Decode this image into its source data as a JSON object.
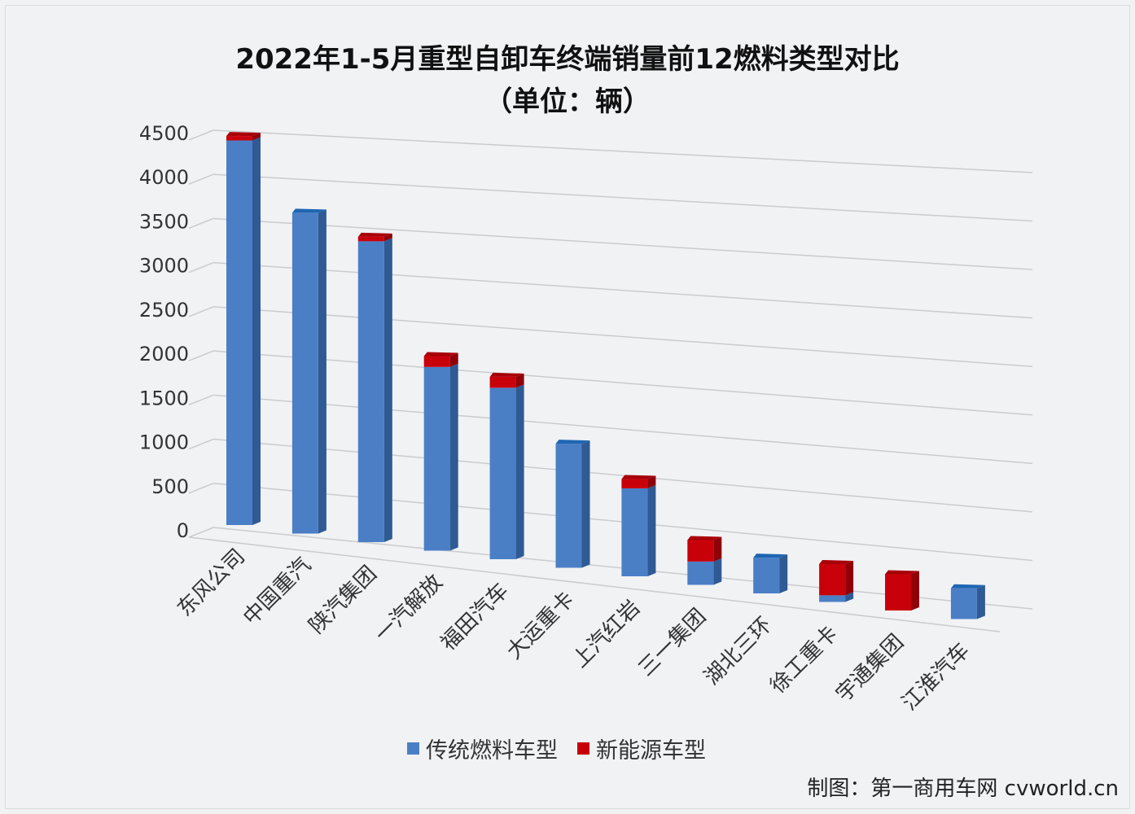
{
  "title": "2022年1-5月重型自卸车终端销量前12燃料类型对比",
  "subtitle": "（单位：辆）",
  "legend": [
    {
      "label": "传统燃料车型",
      "color": "#4a7fc6"
    },
    {
      "label": "新能源车型",
      "color": "#c8000a"
    }
  ],
  "credit": "制图：第一商用车网 cvworld.cn",
  "colors": {
    "blue_front": "#4a7fc6",
    "blue_side": "#2f5a94",
    "blue_top": "#1f66b3",
    "red_front": "#c8000a",
    "red_side": "#8f0008",
    "red_top": "#a80008",
    "grid": "#c9cbce",
    "background": "#f1f2f4"
  },
  "chart_data": {
    "type": "bar",
    "stacked": true,
    "projection": "3d",
    "title": "2022年1-5月重型自卸车终端销量前12燃料类型对比",
    "subtitle": "（单位：辆）",
    "xlabel": "",
    "ylabel": "",
    "ylim": [
      0,
      4500
    ],
    "yticks": [
      0,
      500,
      1000,
      1500,
      2000,
      2500,
      3000,
      3500,
      4000,
      4500
    ],
    "grid": true,
    "legend_position": "bottom",
    "categories": [
      "东风公司",
      "中国重汽",
      "陕汽集团",
      "一汽解放",
      "福田汽车",
      "大运重卡",
      "上汽红岩",
      "三一集团",
      "湖北三环",
      "徐工重卡",
      "宇通集团",
      "江淮汽车"
    ],
    "series": [
      {
        "name": "传统燃料车型",
        "values": [
          4350,
          3600,
          3350,
          2030,
          1880,
          1350,
          950,
          250,
          380,
          70,
          0,
          320
        ]
      },
      {
        "name": "新能源车型",
        "values": [
          50,
          0,
          50,
          120,
          120,
          0,
          100,
          230,
          0,
          330,
          380,
          0
        ]
      }
    ]
  }
}
